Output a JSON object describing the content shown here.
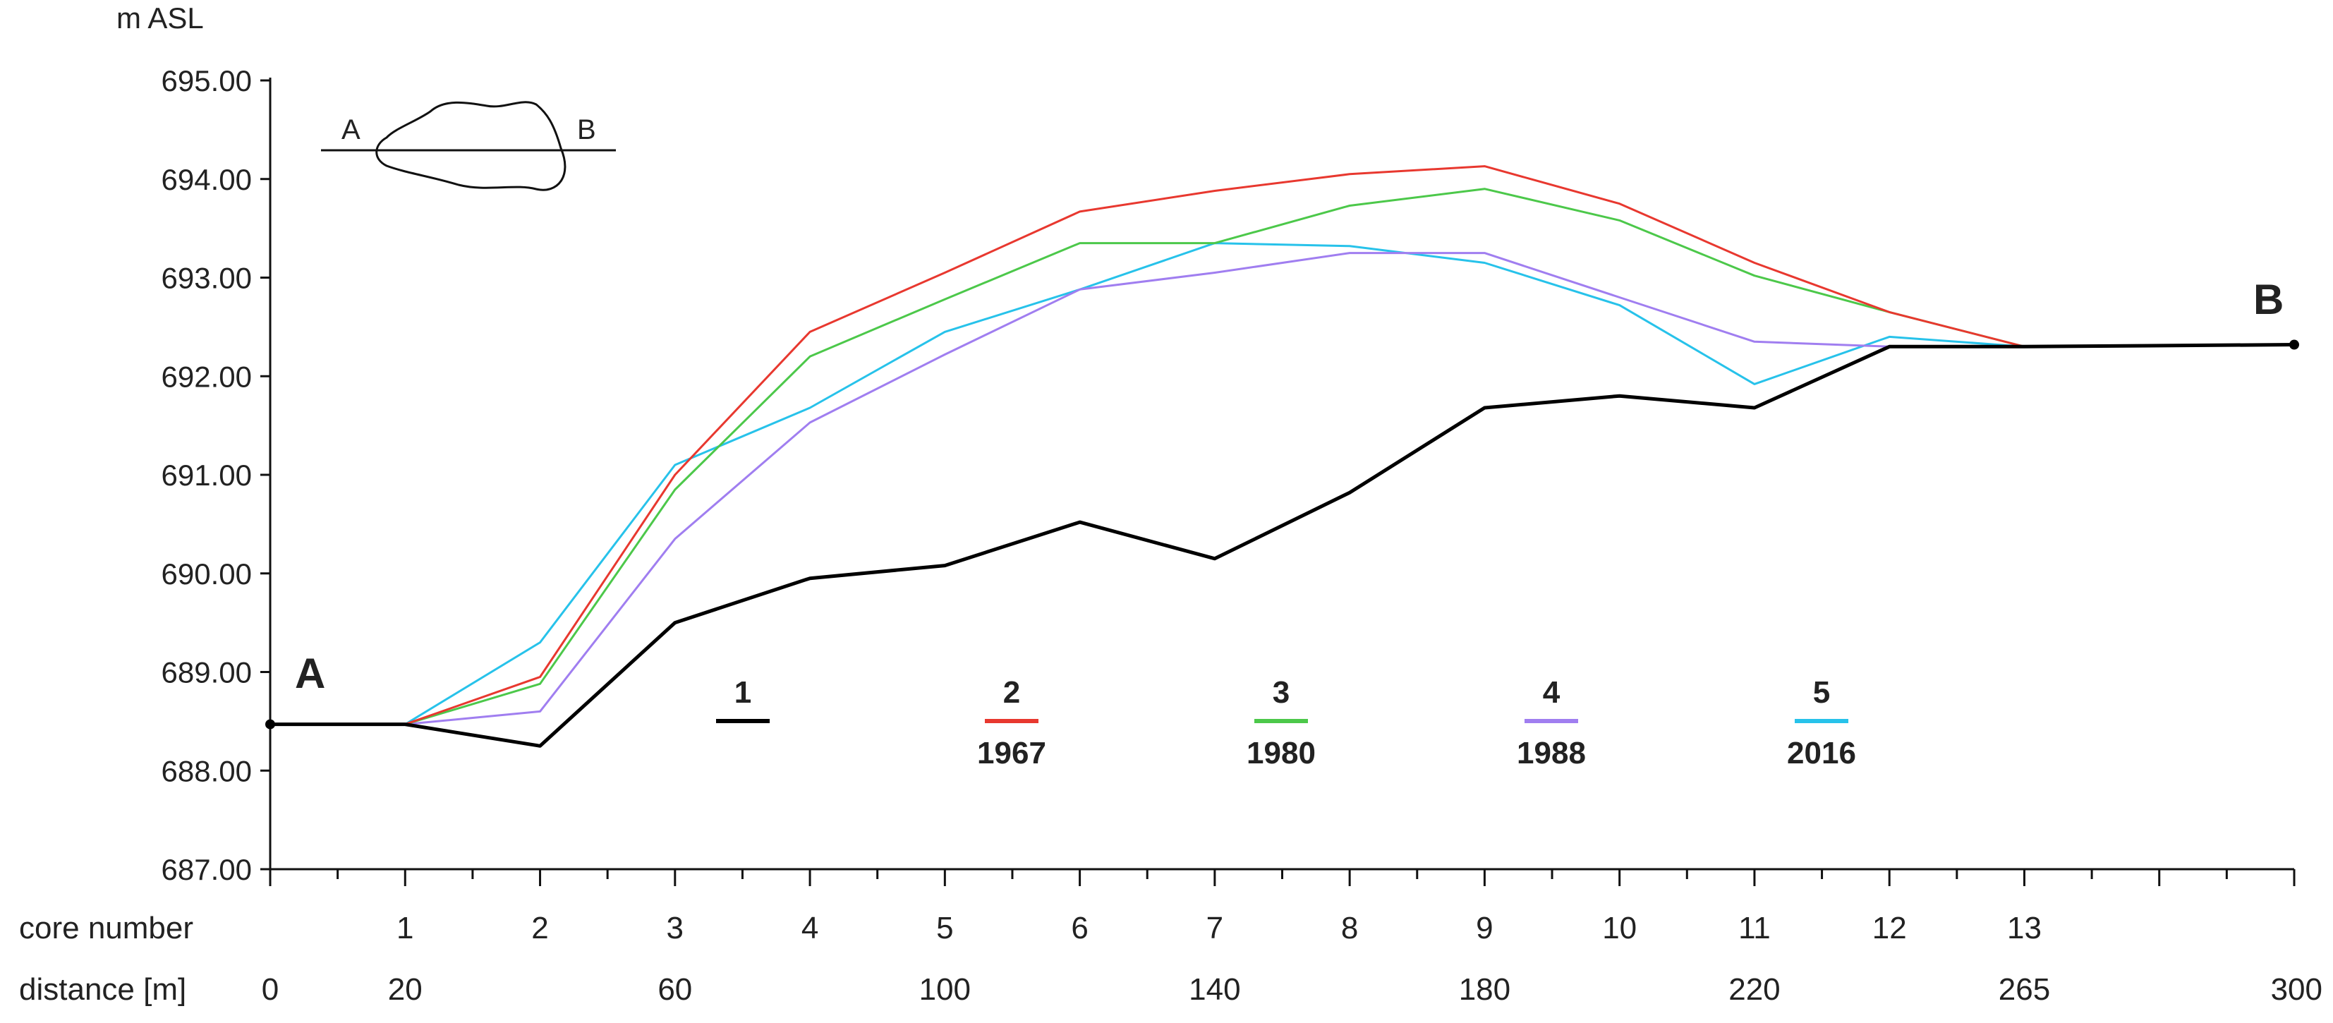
{
  "chart_data": {
    "type": "line",
    "ylabel": "m ASL",
    "ylim": [
      687.0,
      695.0
    ],
    "yticks": [
      "695.00",
      "694.00",
      "693.00",
      "692.00",
      "691.00",
      "690.00",
      "689.00",
      "688.00",
      "687.00"
    ],
    "xlim": [
      0,
      30
    ],
    "core_row_label": "core number",
    "distance_row_label": "distance [m]",
    "core_numbers": [
      "1",
      "2",
      "3",
      "4",
      "5",
      "6",
      "7",
      "8",
      "9",
      "10",
      "11",
      "12",
      "13"
    ],
    "core_positions": [
      2,
      4,
      6,
      8,
      10,
      12,
      14,
      16,
      18,
      20,
      22,
      24,
      26
    ],
    "distance_labels": [
      {
        "pos": 0,
        "label": "0"
      },
      {
        "pos": 2,
        "label": "20"
      },
      {
        "pos": 6,
        "label": "60"
      },
      {
        "pos": 10,
        "label": "100"
      },
      {
        "pos": 14,
        "label": "140"
      },
      {
        "pos": 18,
        "label": "180"
      },
      {
        "pos": 22,
        "label": "220"
      },
      {
        "pos": 26,
        "label": "265"
      },
      {
        "pos": 30,
        "label": "300"
      }
    ],
    "end_labels": {
      "left": "A",
      "right": "B"
    },
    "inset": {
      "left": "A",
      "right": "B"
    },
    "series": [
      {
        "name": "1",
        "year": "",
        "color": "#000000",
        "x": [
          0,
          2,
          4,
          6,
          8,
          10,
          12,
          14,
          16,
          18,
          20,
          22,
          24,
          26,
          30
        ],
        "y": [
          688.47,
          688.47,
          688.25,
          689.5,
          689.95,
          690.08,
          690.52,
          690.15,
          690.82,
          691.68,
          691.8,
          691.68,
          692.3,
          692.3,
          692.32
        ]
      },
      {
        "name": "2",
        "year": "1967",
        "color": "#e8382f",
        "x": [
          2,
          4,
          6,
          8,
          10,
          12,
          14,
          16,
          18,
          20,
          22,
          24,
          26
        ],
        "y": [
          688.47,
          688.95,
          691.0,
          692.45,
          693.05,
          693.67,
          693.88,
          694.05,
          694.13,
          693.75,
          693.15,
          692.65,
          692.3
        ]
      },
      {
        "name": "3",
        "year": "1980",
        "color": "#4cc84a",
        "x": [
          2,
          4,
          6,
          8,
          10,
          12,
          14,
          16,
          18,
          20,
          22,
          24,
          26
        ],
        "y": [
          688.47,
          688.88,
          690.85,
          692.2,
          692.78,
          693.35,
          693.35,
          693.73,
          693.9,
          693.58,
          693.02,
          692.65,
          692.3
        ]
      },
      {
        "name": "4",
        "year": "1988",
        "color": "#a07ef0",
        "x": [
          2,
          4,
          6,
          8,
          10,
          12,
          14,
          16,
          18,
          20,
          22,
          24,
          26
        ],
        "y": [
          688.47,
          688.6,
          690.35,
          691.53,
          692.22,
          692.88,
          693.05,
          693.25,
          693.25,
          692.8,
          692.35,
          692.3,
          692.3
        ]
      },
      {
        "name": "5",
        "year": "2016",
        "color": "#27c2ea",
        "x": [
          2,
          4,
          6,
          8,
          10,
          12,
          14,
          16,
          18,
          20,
          22,
          24,
          26
        ],
        "y": [
          688.47,
          689.3,
          691.1,
          691.68,
          692.45,
          692.88,
          693.35,
          693.32,
          693.15,
          692.72,
          691.92,
          692.4,
          692.3
        ]
      }
    ]
  }
}
